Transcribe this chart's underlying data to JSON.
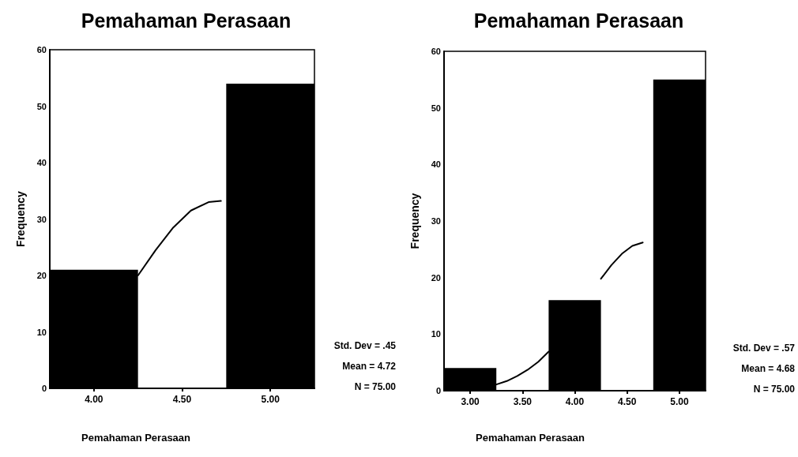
{
  "chart_data": [
    {
      "type": "histogram",
      "title": "Pemahaman Perasaan",
      "xlabel": "Pemahaman Perasaan",
      "ylabel": "Frequency",
      "series": [
        {
          "color": "#000000",
          "bins": [
            3.75,
            4.25,
            4.75,
            5.25
          ],
          "values": [
            21,
            0,
            54
          ]
        },
        {
          "type": "line",
          "color": "#000000",
          "x": [
            4.25,
            4.35,
            4.45,
            4.55,
            4.65,
            4.72
          ],
          "values": [
            20,
            24.5,
            28.5,
            31.5,
            33,
            33.2
          ]
        }
      ],
      "xlim": [
        3.75,
        5.25
      ],
      "xticks": [
        {
          "value": 4,
          "label": "4.00"
        },
        {
          "value": 4.5,
          "label": "4.50"
        },
        {
          "value": 5,
          "label": "5.00"
        }
      ],
      "ylim": [
        0,
        60
      ],
      "yticks": [
        0,
        10,
        20,
        30,
        40,
        50,
        60
      ],
      "grid": false,
      "annotations": [
        "Std. Dev = .45",
        "Mean = 4.72",
        "N = 75.00"
      ]
    },
    {
      "type": "histogram",
      "title": "Pemahaman Perasaan",
      "xlabel": "Pemahaman Perasaan",
      "ylabel": "Frequency",
      "series": [
        {
          "color": "#000000",
          "bins": [
            2.75,
            3.25,
            3.75,
            4.25,
            4.75,
            5.25
          ],
          "values": [
            4,
            0,
            16,
            0,
            55
          ]
        },
        {
          "type": "line",
          "color": "#000000",
          "x": [
            3.25,
            3.35,
            3.45,
            3.55,
            3.65,
            3.75,
            4.0,
            4.25,
            4.35,
            4.45,
            4.55,
            4.65
          ],
          "values": [
            1.1,
            1.7,
            2.6,
            3.7,
            5.1,
            6.9,
            null,
            19.8,
            22.2,
            24.2,
            25.6,
            26.2
          ]
        }
      ],
      "xlim": [
        2.75,
        5.25
      ],
      "xticks": [
        {
          "value": 3,
          "label": "3.00"
        },
        {
          "value": 3.5,
          "label": "3.50"
        },
        {
          "value": 4,
          "label": "4.00"
        },
        {
          "value": 4.5,
          "label": "4.50"
        },
        {
          "value": 5,
          "label": "5.00"
        }
      ],
      "ylim": [
        0,
        60
      ],
      "yticks": [
        0,
        10,
        20,
        30,
        40,
        50,
        60
      ],
      "grid": false,
      "annotations": [
        "Std. Dev = .57",
        "Mean = 4.68",
        "N = 75.00"
      ]
    }
  ]
}
